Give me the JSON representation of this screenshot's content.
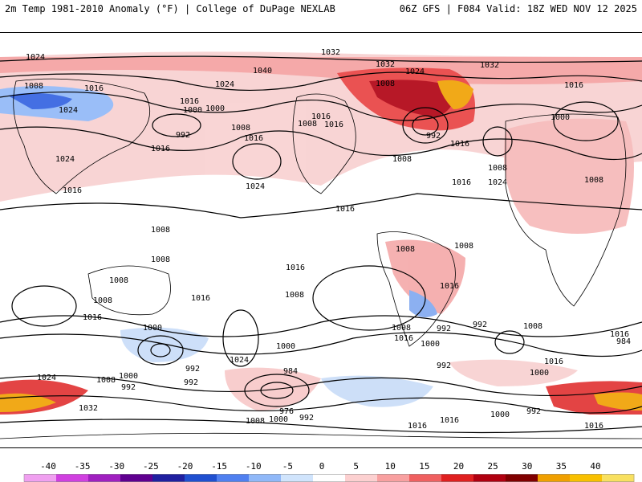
{
  "header": {
    "left": "2m Temp 1981-2010 Anomaly (°F) | College of DuPage NEXLAB",
    "right": "06Z GFS | F084 Valid: 18Z WED NOV 12 2025"
  },
  "map": {
    "field": "2m temperature anomaly",
    "contour_field": "sea level pressure isobars",
    "isobar_labels": [
      "1024",
      "1032",
      "1008",
      "1016",
      "1040",
      "1032",
      "1024",
      "1032",
      "1008",
      "1024",
      "1000",
      "1016",
      "1024",
      "1000",
      "992",
      "1016",
      "1008",
      "1016",
      "1016",
      "1008",
      "1016",
      "992",
      "1016",
      "1024",
      "1008",
      "1016",
      "1000",
      "1008",
      "1024",
      "1024",
      "1008",
      "1016",
      "1016",
      "1016",
      "1008",
      "1008",
      "1008",
      "1008",
      "1008",
      "1008",
      "1016",
      "1016",
      "1008",
      "1016",
      "1016",
      "1000",
      "1008",
      "1000",
      "992",
      "1024",
      "992",
      "1008",
      "1016",
      "992",
      "984",
      "992",
      "1016",
      "1000",
      "1016",
      "1024",
      "1000",
      "984",
      "992",
      "1032",
      "1000",
      "992",
      "1008",
      "1000",
      "976",
      "992",
      "1016",
      "1008",
      "1000",
      "992",
      "1016",
      "1016"
    ],
    "colors": {
      "warm_light": "#f8c8c8",
      "warm_mid": "#f08080",
      "warm_strong": "#e03030",
      "warm_dark": "#a00010",
      "warm_extreme": "#f0a000",
      "cool_light": "#c8dcf8",
      "cool_mid": "#80a8f0",
      "cool_strong": "#3060e0"
    }
  },
  "colorbar": {
    "labels": [
      "-40",
      "-35",
      "-30",
      "-25",
      "-20",
      "-15",
      "-10",
      "-5",
      "0",
      "5",
      "10",
      "15",
      "20",
      "25",
      "30",
      "35",
      "40"
    ],
    "colors": [
      "#f0a0f0",
      "#d040e0",
      "#a020c0",
      "#600090",
      "#2020a0",
      "#2050d0",
      "#5080f0",
      "#90b8f8",
      "#d0e4fc",
      "#ffffff",
      "#fcd0d0",
      "#f8a0a0",
      "#f06060",
      "#e02020",
      "#b00010",
      "#800000",
      "#f0a000",
      "#f8c000",
      "#f8e060"
    ]
  }
}
